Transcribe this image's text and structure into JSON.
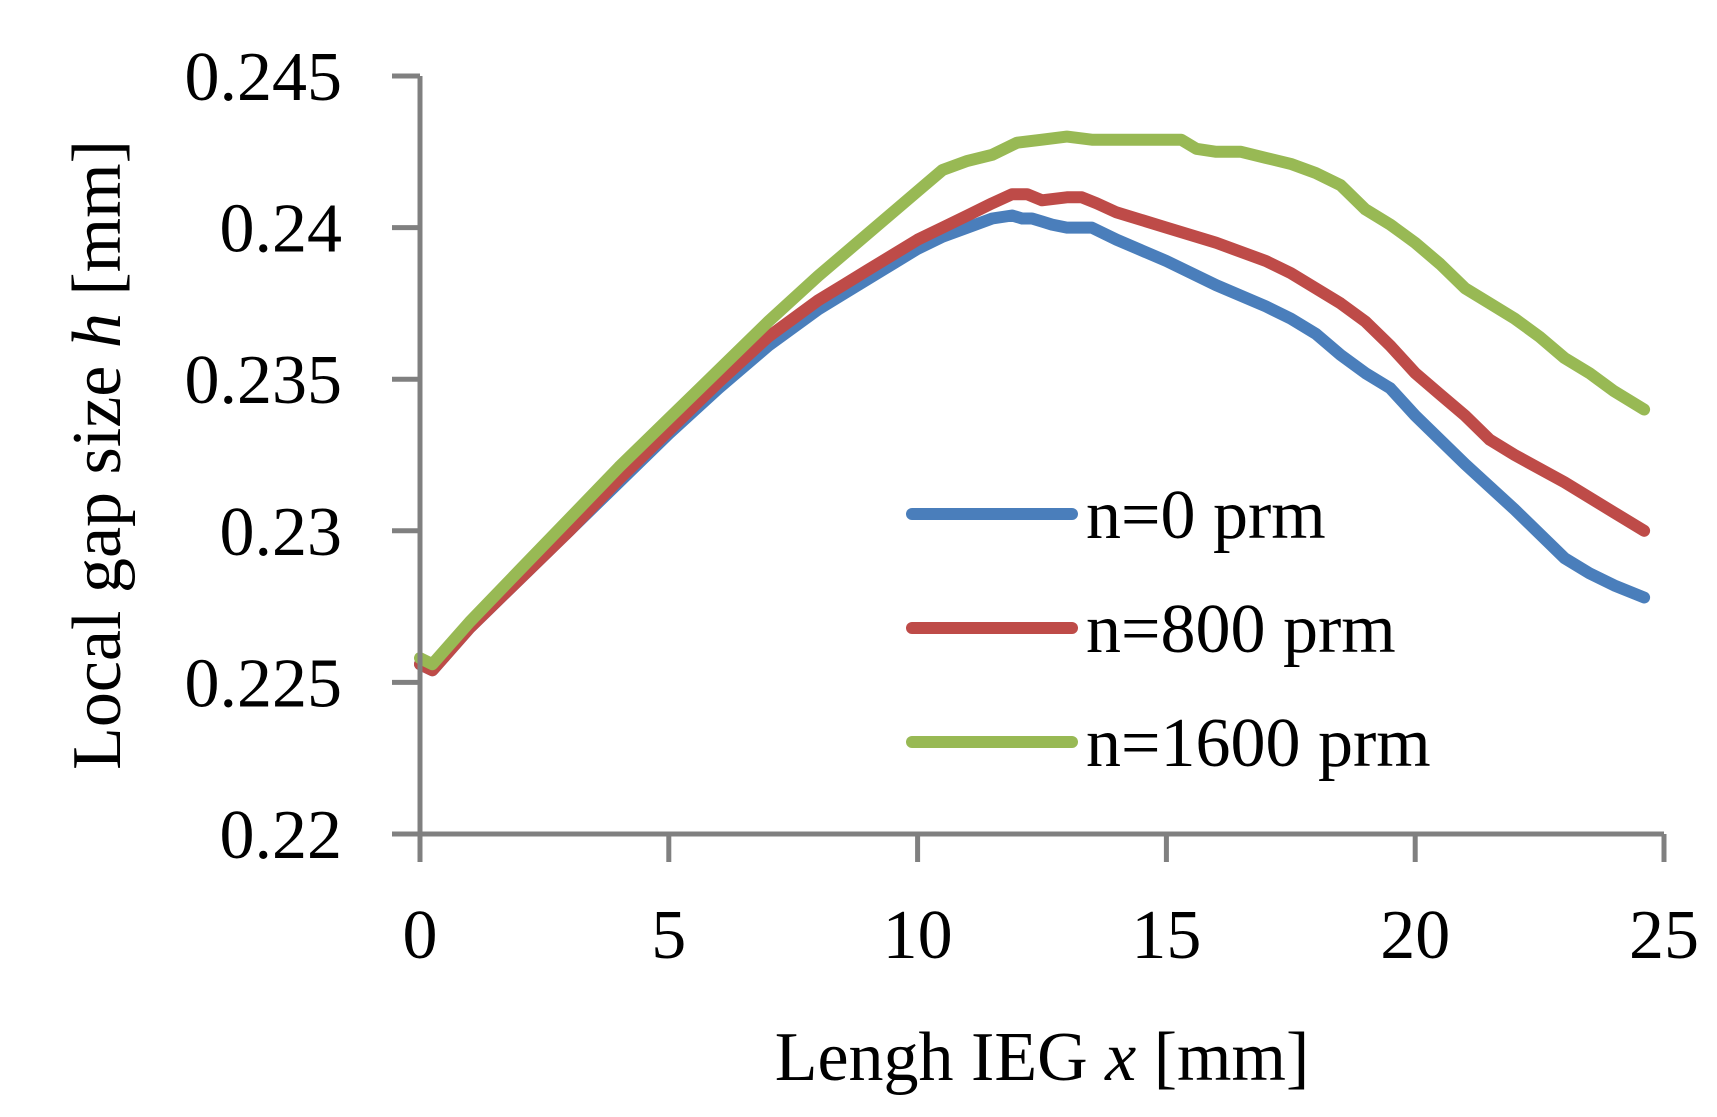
{
  "chart_data": {
    "type": "line",
    "title": "",
    "xlabel": "Lengh IEG ",
    "xlabel_var": "x",
    "xlabel_unit": " [mm]",
    "ylabel": "Local gap size ",
    "ylabel_var": "h",
    "ylabel_unit": " [mm]",
    "xlim": [
      0,
      25
    ],
    "ylim": [
      0.22,
      0.245
    ],
    "x_ticks": [
      0,
      5,
      10,
      15,
      20,
      25
    ],
    "x_tick_labels": [
      "0",
      "5",
      "10",
      "15",
      "20",
      "25"
    ],
    "y_ticks": [
      0.22,
      0.225,
      0.23,
      0.235,
      0.24,
      0.245
    ],
    "y_tick_labels": [
      "0.22",
      "0.225",
      "0.23",
      "0.235",
      "0.24",
      "0.245"
    ],
    "grid": false,
    "legend_position": "center-right",
    "series": [
      {
        "name": "n=0 prm",
        "color": "#4a7ebb",
        "x": [
          0,
          0.25,
          1,
          2,
          3,
          4,
          5,
          6,
          7,
          8,
          8.5,
          9,
          9.5,
          10,
          10.5,
          11,
          11.5,
          11.9,
          12.1,
          12.3,
          12.5,
          12.7,
          13,
          13.5,
          14,
          15,
          16,
          17,
          17.5,
          18,
          18.5,
          19,
          19.5,
          20,
          20.5,
          21,
          22,
          22.5,
          23,
          23.5,
          24,
          24.6
        ],
        "values": [
          0.2256,
          0.2254,
          0.2268,
          0.2284,
          0.23,
          0.2316,
          0.2332,
          0.2347,
          0.2361,
          0.2373,
          0.2378,
          0.2383,
          0.2388,
          0.2393,
          0.2397,
          0.24,
          0.2403,
          0.2404,
          0.2403,
          0.2403,
          0.2402,
          0.2401,
          0.24,
          0.24,
          0.2396,
          0.2389,
          0.2381,
          0.2374,
          0.237,
          0.2365,
          0.2358,
          0.2352,
          0.2347,
          0.2338,
          0.233,
          0.2322,
          0.2307,
          0.2299,
          0.2291,
          0.2286,
          0.2282,
          0.2278
        ]
      },
      {
        "name": "n=800 prm",
        "color": "#be4b48",
        "x": [
          0,
          0.25,
          1,
          2,
          3,
          4,
          5,
          6,
          7,
          7.5,
          8,
          8.5,
          9,
          9.5,
          10,
          10.5,
          11,
          11.5,
          11.9,
          12.2,
          12.5,
          13,
          13.3,
          13.6,
          14,
          15,
          16,
          17,
          17.5,
          18,
          18.5,
          19,
          19.5,
          20,
          20.5,
          21,
          21.5,
          22,
          23,
          24,
          24.6
        ],
        "values": [
          0.2256,
          0.2254,
          0.2268,
          0.2284,
          0.23,
          0.2317,
          0.2333,
          0.2349,
          0.2364,
          0.237,
          0.2376,
          0.2381,
          0.2386,
          0.2391,
          0.2396,
          0.24,
          0.2404,
          0.2408,
          0.2411,
          0.2411,
          0.2409,
          0.241,
          0.241,
          0.2408,
          0.2405,
          0.24,
          0.2395,
          0.2389,
          0.2385,
          0.238,
          0.2375,
          0.2369,
          0.2361,
          0.2352,
          0.2345,
          0.2338,
          0.233,
          0.2325,
          0.2316,
          0.2306,
          0.23
        ]
      },
      {
        "name": "n=1600 prm",
        "color": "#98b954",
        "x": [
          0,
          0.25,
          1,
          2,
          3,
          4,
          5,
          6,
          7,
          8,
          9,
          10,
          10.5,
          11,
          11.5,
          12,
          12.5,
          13,
          13.5,
          14,
          15,
          15.3,
          15.6,
          16,
          16.5,
          17,
          17.5,
          18,
          18.5,
          19,
          19.5,
          20,
          20.5,
          21,
          21.5,
          22,
          22.5,
          23,
          23.5,
          24,
          24.6
        ],
        "values": [
          0.2258,
          0.2256,
          0.227,
          0.2287,
          0.2304,
          0.2321,
          0.2337,
          0.2353,
          0.2369,
          0.2384,
          0.2398,
          0.2412,
          0.2419,
          0.2422,
          0.2424,
          0.2428,
          0.2429,
          0.243,
          0.2429,
          0.2429,
          0.2429,
          0.2429,
          0.2426,
          0.2425,
          0.2425,
          0.2423,
          0.2421,
          0.2418,
          0.2414,
          0.2406,
          0.2401,
          0.2395,
          0.2388,
          0.238,
          0.2375,
          0.237,
          0.2364,
          0.2357,
          0.2352,
          0.2346,
          0.234
        ]
      }
    ]
  }
}
